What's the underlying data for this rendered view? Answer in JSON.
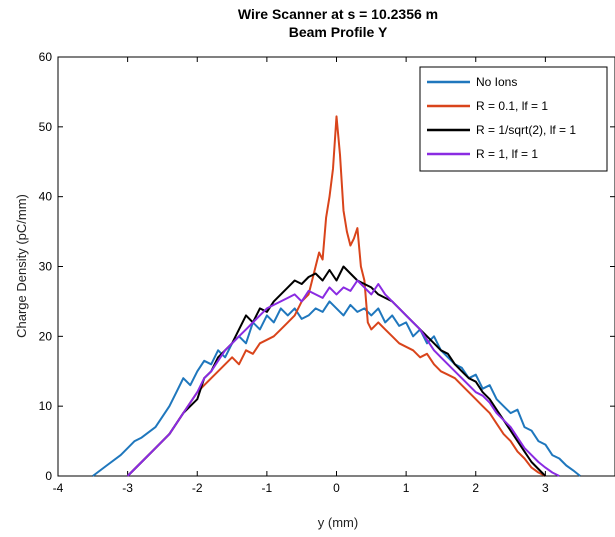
{
  "chart_data": {
    "type": "line",
    "title": "Wire Scanner at s = 10.2356 m",
    "subtitle": "Beam Profile Y",
    "xlabel": "y (mm)",
    "ylabel": "Charge Density (pC/mm)",
    "xlim": [
      -4,
      4
    ],
    "ylim": [
      0,
      60
    ],
    "xticks": [
      -4,
      -3,
      -2,
      -1,
      0,
      1,
      2,
      3
    ],
    "yticks": [
      0,
      10,
      20,
      30,
      40,
      50,
      60
    ],
    "grid": false,
    "legend_position": "top-right",
    "series": [
      {
        "name": "No Ions",
        "color": "#1f77bd",
        "x": [
          -3.5,
          -3.3,
          -3.1,
          -2.9,
          -2.8,
          -2.6,
          -2.4,
          -2.3,
          -2.2,
          -2.1,
          -2.0,
          -1.9,
          -1.8,
          -1.7,
          -1.6,
          -1.5,
          -1.4,
          -1.3,
          -1.2,
          -1.1,
          -1.0,
          -0.9,
          -0.8,
          -0.7,
          -0.6,
          -0.5,
          -0.4,
          -0.3,
          -0.2,
          -0.1,
          0.0,
          0.1,
          0.2,
          0.3,
          0.4,
          0.5,
          0.6,
          0.7,
          0.8,
          0.9,
          1.0,
          1.1,
          1.2,
          1.3,
          1.4,
          1.5,
          1.6,
          1.7,
          1.8,
          1.9,
          2.0,
          2.1,
          2.2,
          2.3,
          2.4,
          2.5,
          2.6,
          2.7,
          2.8,
          2.9,
          3.0,
          3.1,
          3.2,
          3.3,
          3.4,
          3.5
        ],
        "y": [
          0,
          1.5,
          3,
          5,
          5.5,
          7,
          10,
          12,
          14,
          13,
          15,
          16.5,
          16,
          18,
          17,
          19,
          20,
          19,
          22,
          21,
          23,
          22,
          24,
          23,
          24,
          22.5,
          23,
          24,
          23.5,
          25,
          24,
          23,
          24.5,
          23.5,
          24,
          23,
          24,
          22,
          23,
          21.5,
          22,
          20,
          21,
          19,
          20,
          18,
          17,
          16,
          15.5,
          14,
          14.5,
          12.5,
          13,
          11,
          10,
          9,
          9.5,
          7,
          6.5,
          5,
          4.5,
          3,
          2.5,
          1.5,
          0.8,
          0
        ]
      },
      {
        "name": "R = 0.1, lf = 1",
        "color": "#d9441b",
        "x": [
          -3.0,
          -2.8,
          -2.6,
          -2.4,
          -2.2,
          -2.0,
          -1.9,
          -1.8,
          -1.7,
          -1.6,
          -1.5,
          -1.4,
          -1.3,
          -1.2,
          -1.1,
          -1.0,
          -0.9,
          -0.8,
          -0.7,
          -0.6,
          -0.5,
          -0.4,
          -0.3,
          -0.25,
          -0.2,
          -0.15,
          -0.1,
          -0.05,
          0.0,
          0.05,
          0.1,
          0.15,
          0.2,
          0.25,
          0.3,
          0.35,
          0.4,
          0.45,
          0.5,
          0.6,
          0.7,
          0.8,
          0.9,
          1.0,
          1.1,
          1.2,
          1.3,
          1.4,
          1.5,
          1.6,
          1.7,
          1.8,
          1.9,
          2.0,
          2.1,
          2.2,
          2.3,
          2.4,
          2.5,
          2.6,
          2.7,
          2.8,
          2.9,
          3.0
        ],
        "y": [
          0,
          2,
          4,
          6,
          9,
          12,
          13,
          14,
          15,
          16,
          17,
          16,
          18,
          17.5,
          19,
          19.5,
          20,
          21,
          22,
          23,
          25,
          26,
          30,
          32,
          31,
          37,
          40,
          44,
          51.5,
          46,
          38,
          35,
          33,
          34,
          35.5,
          30,
          28,
          22,
          21,
          22,
          21,
          20,
          19,
          18.5,
          18,
          17,
          17.5,
          16,
          15,
          14.5,
          14,
          13,
          12,
          11,
          10,
          9,
          7.5,
          6,
          5,
          3.5,
          2.5,
          1.2,
          0.5,
          0
        ]
      },
      {
        "name": "R = 1/sqrt(2), lf = 1",
        "color": "#000000",
        "x": [
          -3.0,
          -2.8,
          -2.6,
          -2.4,
          -2.2,
          -2.0,
          -1.9,
          -1.8,
          -1.7,
          -1.6,
          -1.5,
          -1.4,
          -1.3,
          -1.2,
          -1.1,
          -1.0,
          -0.9,
          -0.8,
          -0.7,
          -0.6,
          -0.5,
          -0.4,
          -0.3,
          -0.2,
          -0.1,
          0.0,
          0.1,
          0.2,
          0.3,
          0.4,
          0.5,
          0.6,
          0.7,
          0.8,
          0.9,
          1.0,
          1.1,
          1.2,
          1.3,
          1.4,
          1.5,
          1.6,
          1.7,
          1.8,
          1.9,
          2.0,
          2.1,
          2.2,
          2.3,
          2.4,
          2.5,
          2.6,
          2.7,
          2.8,
          2.9,
          3.0
        ],
        "y": [
          0,
          2,
          4,
          6,
          9,
          11,
          14,
          15,
          17,
          18,
          19,
          21,
          23,
          22,
          24,
          23.5,
          25,
          26,
          27,
          28,
          27.5,
          28.5,
          29,
          28,
          29.5,
          28,
          30,
          29,
          28,
          27.5,
          27,
          26,
          25.5,
          25,
          24,
          23,
          22,
          21,
          20,
          19,
          18,
          17.5,
          16,
          15,
          14,
          13.5,
          12,
          11,
          9.5,
          8,
          6.5,
          5,
          3.5,
          2,
          1,
          0
        ]
      },
      {
        "name": "R = 1, lf = 1",
        "color": "#8a2be2",
        "x": [
          -3.0,
          -2.8,
          -2.6,
          -2.4,
          -2.2,
          -2.0,
          -1.9,
          -1.8,
          -1.7,
          -1.6,
          -1.5,
          -1.4,
          -1.3,
          -1.2,
          -1.1,
          -1.0,
          -0.9,
          -0.8,
          -0.7,
          -0.6,
          -0.5,
          -0.4,
          -0.3,
          -0.2,
          -0.1,
          0.0,
          0.1,
          0.2,
          0.3,
          0.4,
          0.5,
          0.6,
          0.7,
          0.8,
          0.9,
          1.0,
          1.1,
          1.2,
          1.3,
          1.4,
          1.5,
          1.6,
          1.7,
          1.8,
          1.9,
          2.0,
          2.1,
          2.2,
          2.3,
          2.4,
          2.5,
          2.6,
          2.7,
          2.8,
          2.9,
          3.0,
          3.1,
          3.2
        ],
        "y": [
          0,
          2,
          4,
          6,
          9,
          12,
          14,
          15,
          16.5,
          18,
          19,
          20,
          21,
          22,
          23,
          24,
          24.5,
          25,
          25.5,
          26,
          25,
          26.5,
          26,
          25.5,
          27,
          26,
          27,
          26.5,
          28,
          27,
          26,
          27.5,
          26,
          25,
          24,
          23,
          22,
          21,
          19.5,
          18,
          17,
          16,
          15,
          14,
          13,
          12,
          11.5,
          10.5,
          9,
          8,
          7,
          5.5,
          4,
          3,
          2,
          1.2,
          0.5,
          0
        ]
      }
    ]
  }
}
